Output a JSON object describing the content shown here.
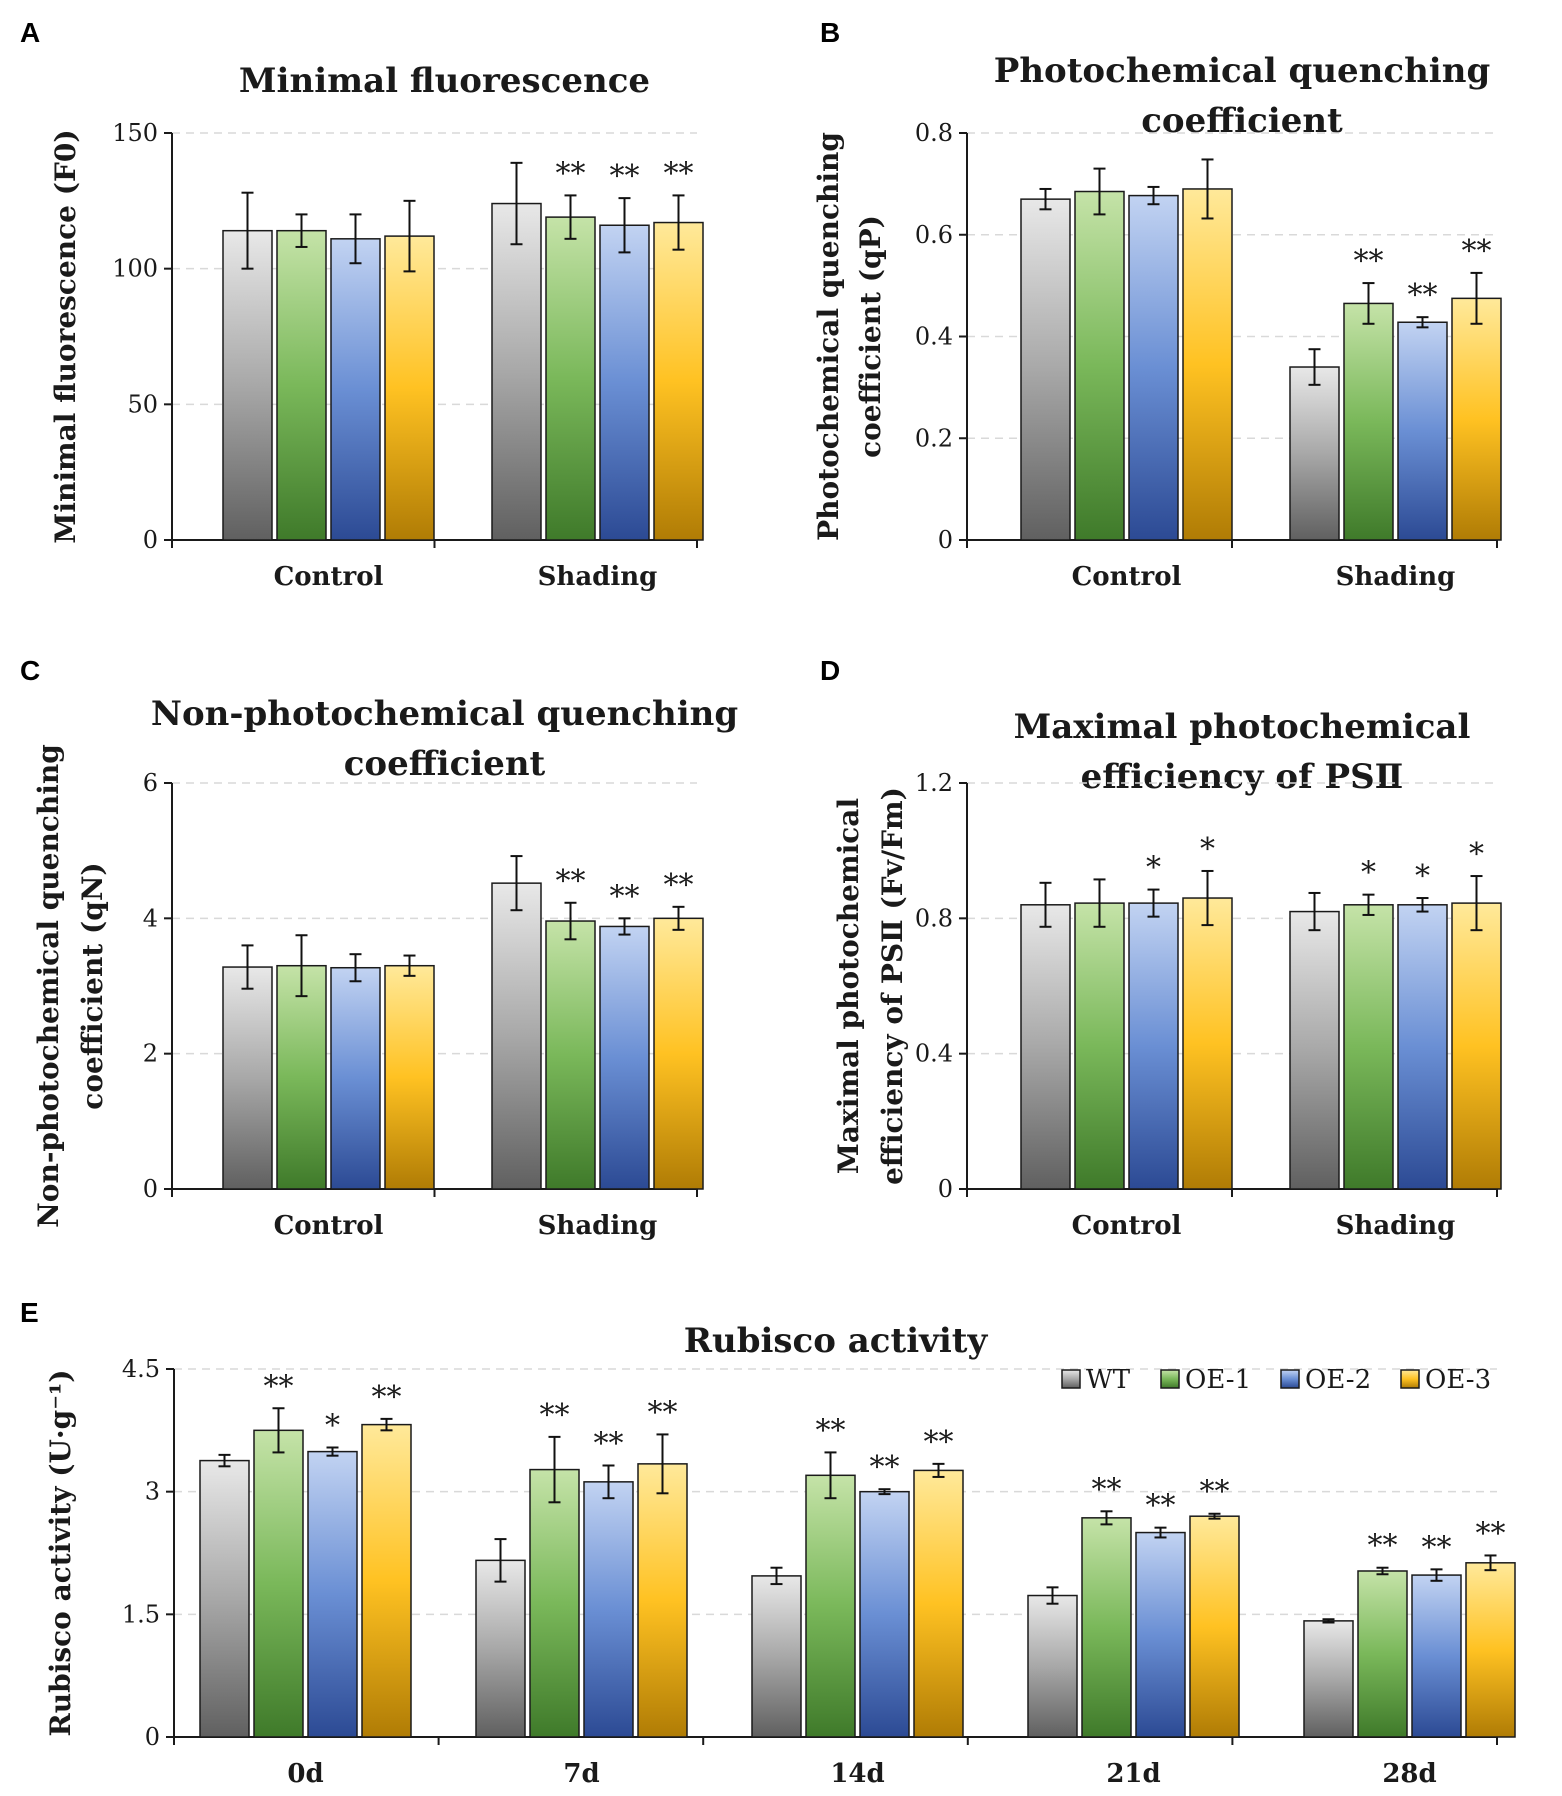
{
  "chart_data": [
    {
      "panel": "A",
      "type": "bar",
      "title": "Minimal fluorescence",
      "ylabel": [
        "Minimal fluorescence (F0)"
      ],
      "categories": [
        "Control",
        "Shading"
      ],
      "ylim": [
        0,
        150
      ],
      "yticks": [
        "0",
        "50",
        "100",
        "150"
      ],
      "series": [
        {
          "name": "WT",
          "values": [
            114,
            124
          ],
          "errors": [
            14,
            15
          ],
          "sig": [
            "",
            ""
          ]
        },
        {
          "name": "OE-1",
          "values": [
            114,
            119
          ],
          "errors": [
            6,
            8
          ],
          "sig": [
            "",
            "**"
          ]
        },
        {
          "name": "OE-2",
          "values": [
            111,
            116
          ],
          "errors": [
            9,
            10
          ],
          "sig": [
            "",
            "**"
          ]
        },
        {
          "name": "OE-3",
          "values": [
            112,
            117
          ],
          "errors": [
            13,
            10
          ],
          "sig": [
            "",
            "**"
          ]
        }
      ]
    },
    {
      "panel": "B",
      "type": "bar",
      "title": [
        "Photochemical quenching",
        "coefficient"
      ],
      "ylabel": [
        "Photochemical quenching",
        "coefficient (qP)"
      ],
      "categories": [
        "Control",
        "Shading"
      ],
      "ylim": [
        0,
        0.8
      ],
      "yticks": [
        "0",
        "0.2",
        "0.4",
        "0.6",
        "0.8"
      ],
      "series": [
        {
          "name": "WT",
          "values": [
            0.67,
            0.34
          ],
          "errors": [
            0.02,
            0.035
          ],
          "sig": [
            "",
            ""
          ]
        },
        {
          "name": "OE-1",
          "values": [
            0.685,
            0.465
          ],
          "errors": [
            0.045,
            0.04
          ],
          "sig": [
            "",
            "**"
          ]
        },
        {
          "name": "OE-2",
          "values": [
            0.677,
            0.428
          ],
          "errors": [
            0.017,
            0.01
          ],
          "sig": [
            "",
            "**"
          ]
        },
        {
          "name": "OE-3",
          "values": [
            0.69,
            0.475
          ],
          "errors": [
            0.058,
            0.05
          ],
          "sig": [
            "",
            "**"
          ]
        }
      ]
    },
    {
      "panel": "C",
      "type": "bar",
      "title": [
        "Non-photochemical quenching",
        "coefficient"
      ],
      "ylabel": [
        "Non-photochemical quenching",
        "coefficient (qN)"
      ],
      "categories": [
        "Control",
        "Shading"
      ],
      "ylim": [
        0,
        6
      ],
      "yticks": [
        "0",
        "2",
        "4",
        "6"
      ],
      "series": [
        {
          "name": "WT",
          "values": [
            3.28,
            4.52
          ],
          "errors": [
            0.32,
            0.4
          ],
          "sig": [
            "",
            ""
          ]
        },
        {
          "name": "OE-1",
          "values": [
            3.3,
            3.96
          ],
          "errors": [
            0.45,
            0.27
          ],
          "sig": [
            "",
            "**"
          ]
        },
        {
          "name": "OE-2",
          "values": [
            3.27,
            3.88
          ],
          "errors": [
            0.2,
            0.12
          ],
          "sig": [
            "",
            "**"
          ]
        },
        {
          "name": "OE-3",
          "values": [
            3.3,
            4.0
          ],
          "errors": [
            0.15,
            0.17
          ],
          "sig": [
            "",
            "**"
          ]
        }
      ]
    },
    {
      "panel": "D",
      "type": "bar",
      "title": [
        "Maximal photochemical",
        "efficiency of PSⅡ"
      ],
      "ylabel": [
        "Maximal photochemical",
        "efficiency of PSⅡ (Fv/Fm)"
      ],
      "categories": [
        "Control",
        "Shading"
      ],
      "ylim": [
        0,
        1.2
      ],
      "yticks": [
        "0",
        "0.4",
        "0.8",
        "1.2"
      ],
      "series": [
        {
          "name": "WT",
          "values": [
            0.84,
            0.82
          ],
          "errors": [
            0.065,
            0.055
          ],
          "sig": [
            "",
            ""
          ]
        },
        {
          "name": "OE-1",
          "values": [
            0.845,
            0.84
          ],
          "errors": [
            0.07,
            0.03
          ],
          "sig": [
            "",
            "*"
          ]
        },
        {
          "name": "OE-2",
          "values": [
            0.845,
            0.84
          ],
          "errors": [
            0.04,
            0.02
          ],
          "sig": [
            "*",
            "*"
          ]
        },
        {
          "name": "OE-3",
          "values": [
            0.86,
            0.845
          ],
          "errors": [
            0.08,
            0.08
          ],
          "sig": [
            "*",
            "*"
          ]
        }
      ]
    },
    {
      "panel": "E",
      "type": "bar",
      "title": "Rubisco activity",
      "ylabel": [
        "Rubisco activity (U·g⁻¹)"
      ],
      "categories": [
        "0d",
        "7d",
        "14d",
        "21d",
        "28d"
      ],
      "ylim": [
        0,
        4.5
      ],
      "yticks": [
        "0",
        "1.5",
        "3",
        "4.5"
      ],
      "legend": {
        "position": "top-right"
      },
      "series": [
        {
          "name": "WT",
          "values": [
            3.38,
            2.16,
            1.97,
            1.73,
            1.42
          ],
          "errors": [
            0.07,
            0.26,
            0.1,
            0.1,
            0.02
          ],
          "sig": [
            "",
            "",
            "",
            "",
            ""
          ]
        },
        {
          "name": "OE-1",
          "values": [
            3.75,
            3.27,
            3.2,
            2.68,
            2.03
          ],
          "errors": [
            0.27,
            0.4,
            0.28,
            0.08,
            0.04
          ],
          "sig": [
            "**",
            "**",
            "**",
            "**",
            "**"
          ]
        },
        {
          "name": "OE-2",
          "values": [
            3.49,
            3.12,
            3.0,
            2.5,
            1.98
          ],
          "errors": [
            0.05,
            0.2,
            0.03,
            0.06,
            0.07
          ],
          "sig": [
            "*",
            "**",
            "**",
            "**",
            "**"
          ]
        },
        {
          "name": "OE-3",
          "values": [
            3.82,
            3.34,
            3.26,
            2.7,
            2.13
          ],
          "errors": [
            0.07,
            0.36,
            0.08,
            0.03,
            0.09
          ],
          "sig": [
            "**",
            "**",
            "**",
            "**",
            "**"
          ]
        }
      ]
    }
  ],
  "palette": {
    "WT": [
      "#e8e8e8",
      "#a8a8a8",
      "#606060"
    ],
    "OE-1": [
      "#c5e3a8",
      "#7ab85a",
      "#3f7a2a"
    ],
    "OE-2": [
      "#c2d3f2",
      "#6a8fd4",
      "#2c4a94"
    ],
    "OE-3": [
      "#ffe99a",
      "#ffc222",
      "#b07c05"
    ],
    "axis": "#1a1a1a",
    "grid": "#d9d9d9"
  }
}
